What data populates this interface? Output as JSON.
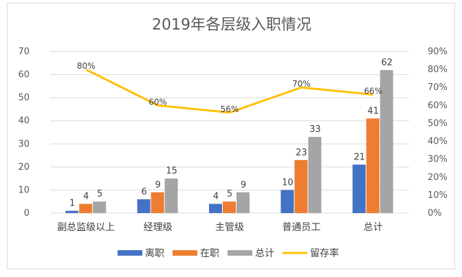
{
  "chart_data": {
    "type": "bar",
    "title": "2019年各层级入职情况",
    "categories": [
      "副总监级以上",
      "经理级",
      "主管级",
      "普通员工",
      "总计"
    ],
    "series": [
      {
        "name": "离职",
        "kind": "bar",
        "axis": "left",
        "color": "#4472C4",
        "values": [
          1,
          6,
          4,
          10,
          21
        ]
      },
      {
        "name": "在职",
        "kind": "bar",
        "axis": "left",
        "color": "#ED7D31",
        "values": [
          4,
          9,
          5,
          23,
          41
        ]
      },
      {
        "name": "总计",
        "kind": "bar",
        "axis": "left",
        "color": "#A5A5A5",
        "values": [
          5,
          15,
          9,
          33,
          62
        ]
      },
      {
        "name": "留存率",
        "kind": "line",
        "axis": "right",
        "color": "#FFC000",
        "values": [
          80,
          60,
          56,
          70,
          66
        ],
        "labels": [
          "80%",
          "60%",
          "56%",
          "70%",
          "66%"
        ]
      }
    ],
    "ylim": [
      0,
      70
    ],
    "yticks": [
      "0",
      "10",
      "20",
      "30",
      "40",
      "50",
      "60",
      "70"
    ],
    "y2lim": [
      0,
      90
    ],
    "y2ticks": [
      "0%",
      "10%",
      "20%",
      "30%",
      "40%",
      "50%",
      "60%",
      "70%",
      "80%",
      "90%"
    ],
    "grid": true,
    "legend_position": "bottom"
  }
}
